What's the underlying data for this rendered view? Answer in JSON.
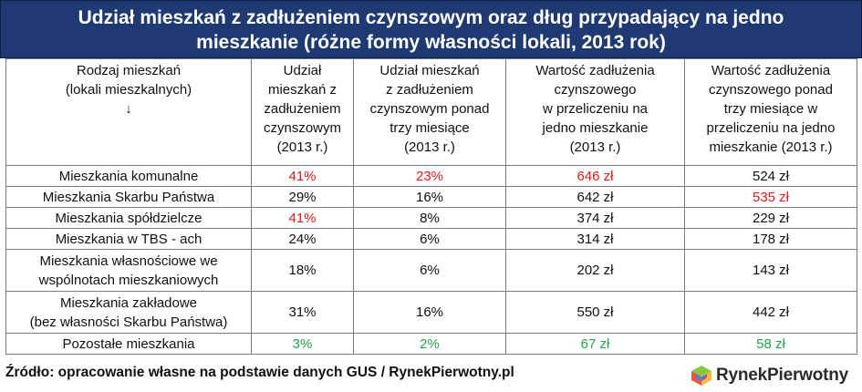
{
  "title": {
    "line1": "Udział mieszkań z zadłużeniem czynszowym oraz dług przypadający na jedno",
    "line2": "mieszkanie (różne formy własności lokali, 2013 rok)"
  },
  "table": {
    "headers": {
      "col0_line1": "Rodzaj mieszkań",
      "col0_line2": "(lokali mieszkalnych)",
      "col0_arrow": "↓",
      "col1_line1": "Udział",
      "col1_line2": "mieszkań z",
      "col1_line3": "zadłużeniem",
      "col1_line4": "czynszowym",
      "col1_line5": "(2013 r.)",
      "col2_line1": "Udział mieszkań",
      "col2_line2": "z zadłużeniem",
      "col2_line3": "czynszowym ponad",
      "col2_line4": "trzy miesiące",
      "col2_line5": "(2013 r.)",
      "col3_line1": "Wartość zadłużenia",
      "col3_line2": "czynszowego",
      "col3_line3": "w przeliczeniu na",
      "col3_line4": "jedno mieszkanie",
      "col3_line5": "(2013 r.)",
      "col4_line1": "Wartość zadłużenia",
      "col4_line2": "czynszowego ponad",
      "col4_line3": "trzy miesiące w",
      "col4_line4": "przeliczeniu na jedno",
      "col4_line5": "mieszkanie (2013 r.)"
    },
    "rows": [
      {
        "label": "Mieszkania komunalne",
        "share": "41%",
        "share3m": "23%",
        "debt": "646 zł",
        "debt3m": "524 zł"
      },
      {
        "label": "Mieszkania Skarbu Państwa",
        "share": "29%",
        "share3m": "16%",
        "debt": "642 zł",
        "debt3m": "535 zł"
      },
      {
        "label": "Mieszkania spółdzielcze",
        "share": "41%",
        "share3m": "8%",
        "debt": "374 zł",
        "debt3m": "229 zł"
      },
      {
        "label": "Mieszkania w TBS - ach",
        "share": "24%",
        "share3m": "6%",
        "debt": "314 zł",
        "debt3m": "178 zł"
      },
      {
        "label_line1": "Mieszkania własnościowe we",
        "label_line2": "wspólnotach mieszkaniowych",
        "share": "18%",
        "share3m": "6%",
        "debt": "202 zł",
        "debt3m": "143 zł"
      },
      {
        "label_line1": "Mieszkania zakładowe",
        "label_line2": "(bez własności Skarbu Państwa)",
        "share": "31%",
        "share3m": "16%",
        "debt": "550 zł",
        "debt3m": "442 zł"
      },
      {
        "label": "Pozostałe mieszkania",
        "share": "3%",
        "share3m": "2%",
        "debt": "67 zł",
        "debt3m": "58 zł"
      }
    ],
    "highlight_colors": {
      "max": "#e01b1b",
      "min": "#21a54a"
    }
  },
  "footer": {
    "source": "Źródło: opracowanie własne na podstawie danych GUS / RynekPierwotny.pl",
    "logo_text": "RynekPierwotny"
  }
}
